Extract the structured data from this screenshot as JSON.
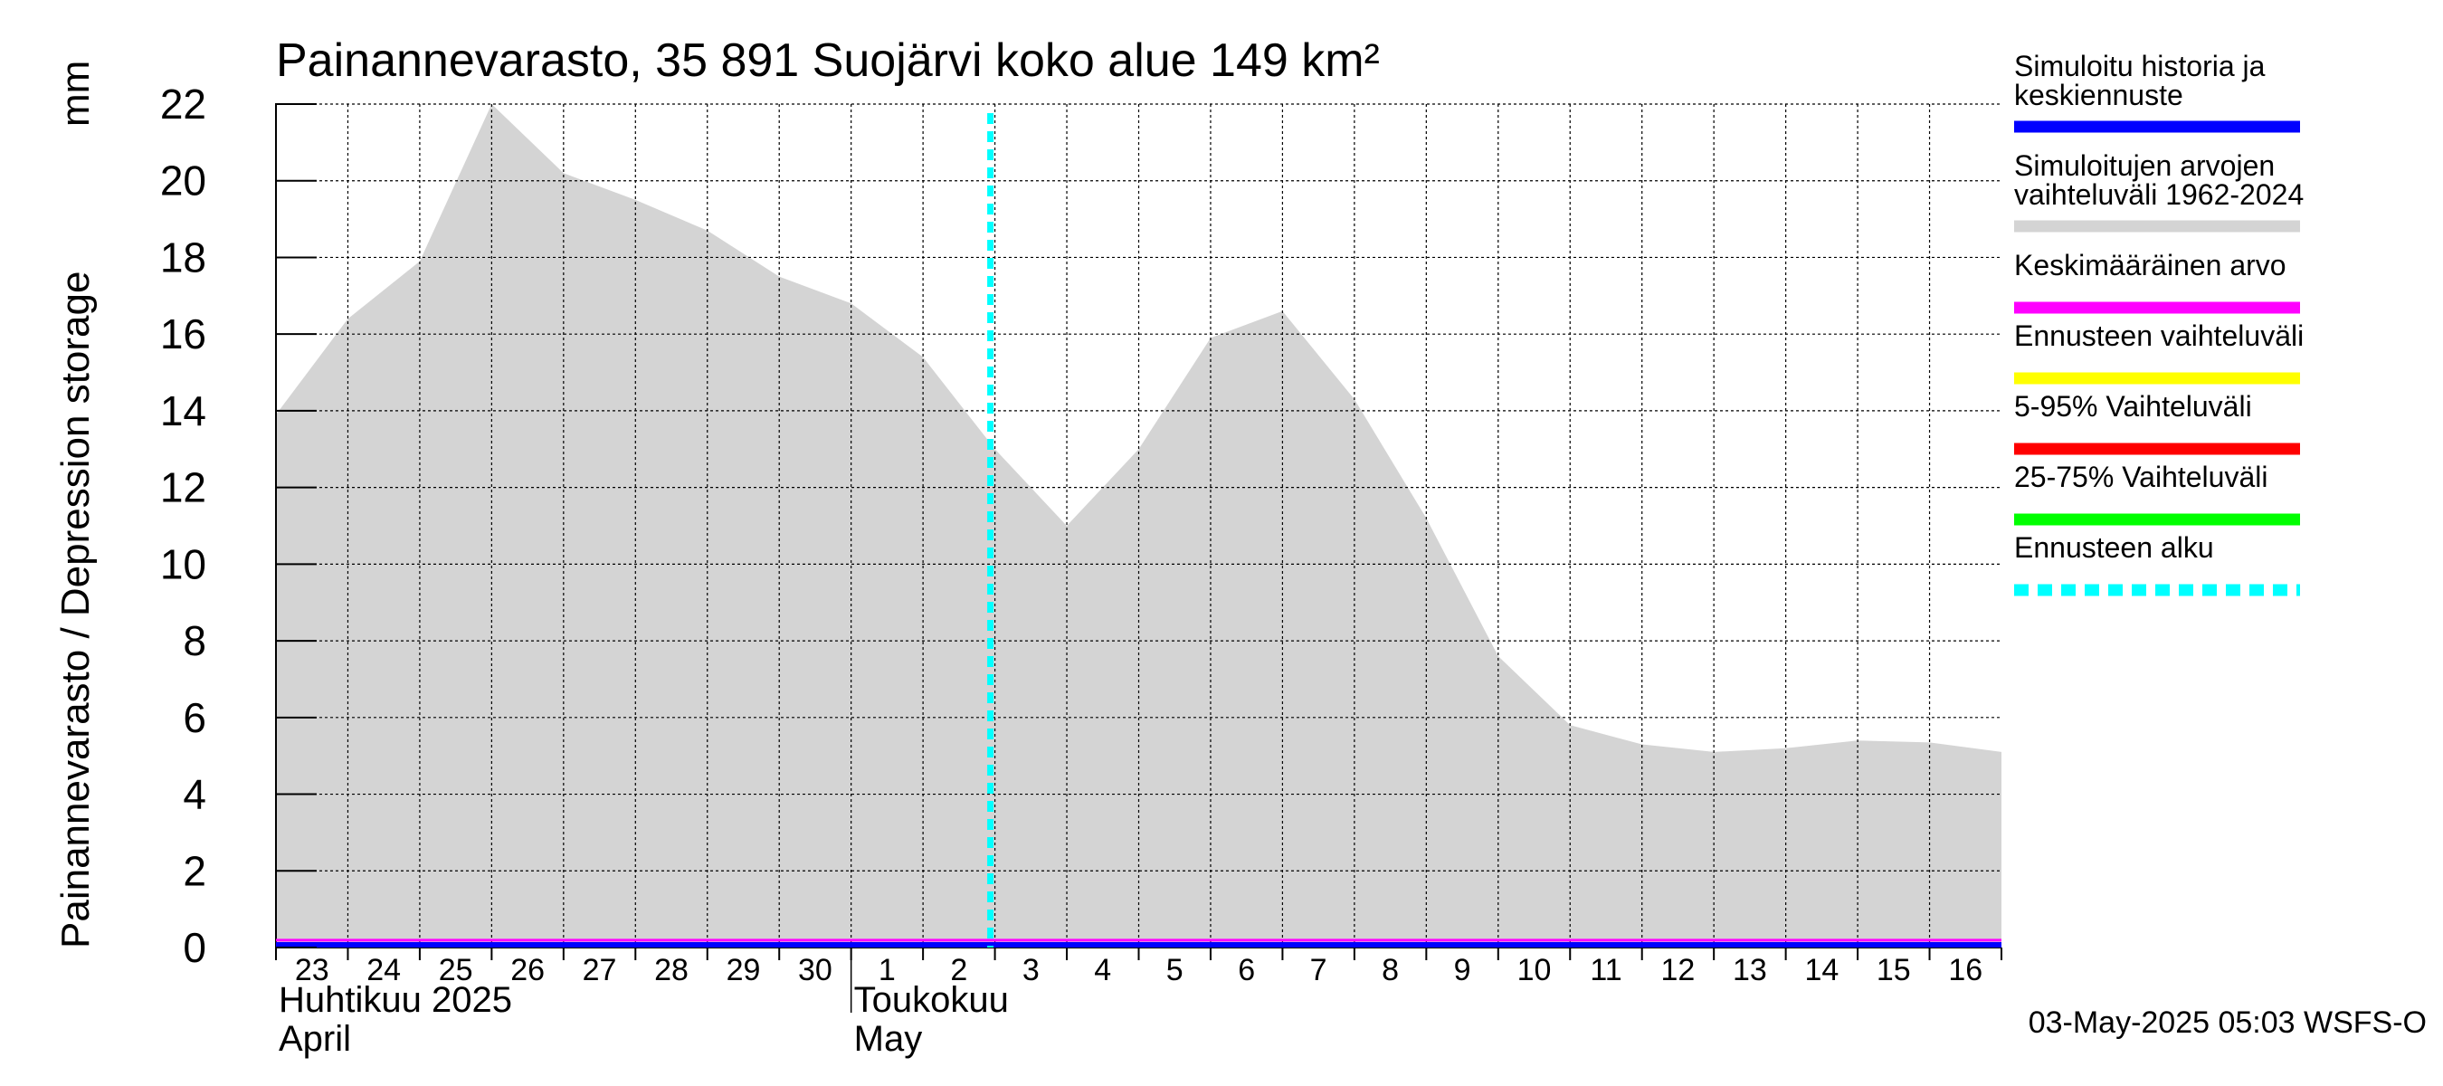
{
  "chart_data": {
    "type": "area",
    "title": "Painannevarasto, 35 891 Suojärvi koko alue 149 km²",
    "ylabel": "Painannevarasto / Depression storage",
    "yunit": "mm",
    "ylim": [
      0,
      22
    ],
    "yticks": [
      0,
      2,
      4,
      6,
      8,
      10,
      12,
      14,
      16,
      18,
      20,
      22
    ],
    "xlim": [
      0,
      24
    ],
    "day_labels": [
      "23",
      "24",
      "25",
      "26",
      "27",
      "28",
      "29",
      "30",
      "1",
      "2",
      "3",
      "4",
      "5",
      "6",
      "7",
      "8",
      "9",
      "10",
      "11",
      "12",
      "13",
      "14",
      "15",
      "16"
    ],
    "month_labels": [
      {
        "fi": "Huhtikuu  2025",
        "en": "April",
        "start_day": 0
      },
      {
        "fi": "Toukokuu",
        "en": "May",
        "start_day": 8
      }
    ],
    "forecast_start_day": 10,
    "range_series": {
      "name": "Simuloitujen arvojen vaihteluväli 1962-2024",
      "x": [
        0,
        1,
        2,
        3,
        4,
        5,
        6,
        7,
        8,
        9,
        10,
        11,
        12,
        13,
        14,
        15,
        16,
        17,
        18,
        19,
        20,
        21,
        22,
        23,
        24
      ],
      "upper": [
        13.9,
        16.4,
        17.9,
        22.0,
        20.2,
        19.5,
        18.7,
        17.5,
        16.8,
        15.4,
        13.0,
        11.0,
        13.0,
        15.9,
        16.6,
        14.3,
        11.2,
        7.6,
        5.8,
        5.3,
        5.1,
        5.2,
        5.4,
        5.35,
        5.1
      ],
      "lower": [
        0,
        0,
        0,
        0,
        0,
        0,
        0,
        0,
        0,
        0,
        0,
        0,
        0,
        0,
        0,
        0,
        0,
        0,
        0,
        0,
        0,
        0,
        0,
        0,
        0
      ]
    },
    "history_series": {
      "name": "Simuloitu historia ja keskiennuste",
      "x": [
        0,
        24
      ],
      "values": [
        0,
        0
      ]
    },
    "mean_series": {
      "name": "Keskimääräinen arvo",
      "x": [
        0,
        24
      ],
      "values": [
        0.05,
        0.05
      ]
    }
  },
  "legend": {
    "items": [
      {
        "label1": "Simuloitu historia ja",
        "label2": "keskiennuste",
        "color": "#0000ff",
        "style": "solid"
      },
      {
        "label1": "Simuloitujen arvojen",
        "label2": "vaihteluväli 1962-2024",
        "color": "#d4d4d4",
        "style": "solid"
      },
      {
        "label1": "Keskimääräinen arvo",
        "label2": "",
        "color": "#ff00ff",
        "style": "solid"
      },
      {
        "label1": "Ennusteen vaihteluväli",
        "label2": "",
        "color": "#ffff00",
        "style": "solid"
      },
      {
        "label1": "5-95% Vaihteluväli",
        "label2": "",
        "color": "#ff0000",
        "style": "solid"
      },
      {
        "label1": "25-75% Vaihteluväli",
        "label2": "",
        "color": "#00ff00",
        "style": "solid"
      },
      {
        "label1": "Ennusteen alku",
        "label2": "",
        "color": "#00ffff",
        "style": "dashed"
      }
    ]
  },
  "footer": {
    "timestamp": "03-May-2025 05:03 WSFS-O"
  }
}
